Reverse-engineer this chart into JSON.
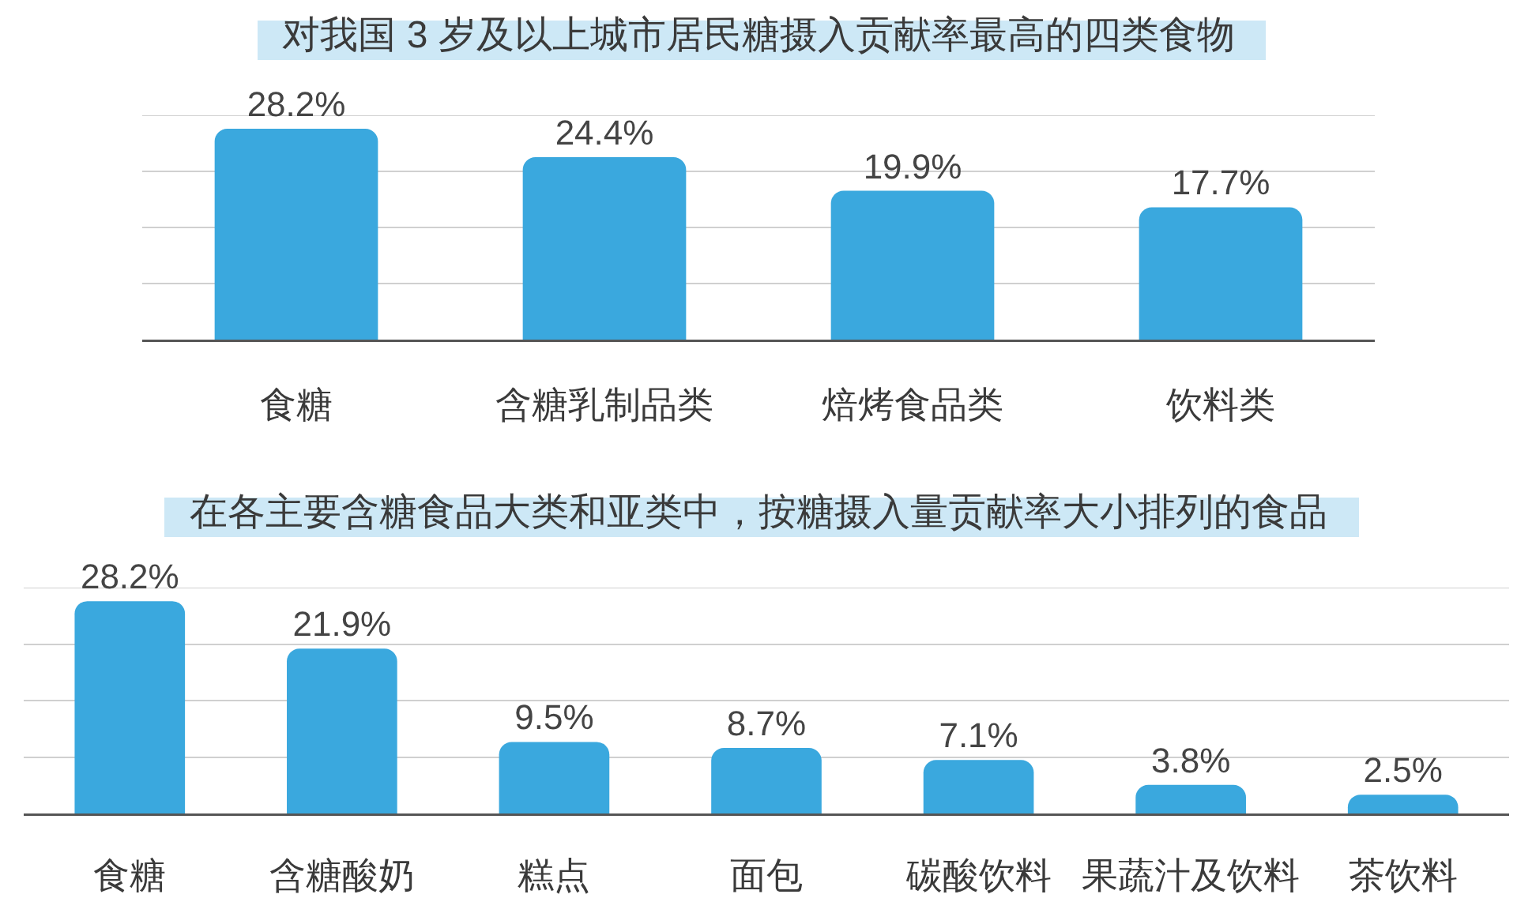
{
  "chart_data": [
    {
      "type": "bar",
      "title": "对我国 3 岁及以上城市居民糖摄入贡献率最高的四类食物",
      "categories": [
        "食糖",
        "含糖乳制品类",
        "焙烤食品类",
        "饮料类"
      ],
      "values": [
        28.2,
        24.4,
        19.9,
        17.7
      ],
      "value_labels": [
        "28.2%",
        "24.4%",
        "19.9%",
        "17.7%"
      ],
      "color": "#3aa8de",
      "ylim": [
        0,
        30
      ],
      "yticks": [
        {
          "value": 7.5,
          "label": null
        },
        {
          "value": 15,
          "label": null
        },
        {
          "value": 22.5,
          "label": null
        },
        {
          "value": 30,
          "label": null
        }
      ],
      "grid": "y",
      "tick_labels": "x"
    },
    {
      "type": "bar",
      "title": "在各主要含糖食品大类和亚类中，按糖摄入量贡献率大小排列的食品",
      "categories": [
        "食糖",
        "含糖酸奶",
        "糕点",
        "面包",
        "碳酸饮料",
        "果蔬汁及饮料",
        "茶饮料"
      ],
      "values": [
        28.2,
        21.9,
        9.5,
        8.7,
        7.1,
        3.8,
        2.5
      ],
      "value_labels": [
        "28.2%",
        "21.9%",
        "9.5%",
        "8.7%",
        "7.1%",
        "3.8%",
        "2.5%"
      ],
      "color": "#3aa8de",
      "ylim": [
        0,
        30
      ],
      "yticks": [
        {
          "value": 7.5,
          "label": null
        },
        {
          "value": 15,
          "label": null
        },
        {
          "value": 22.5,
          "label": null
        },
        {
          "value": 30,
          "label": null
        }
      ],
      "grid": "y",
      "tick_labels": "x"
    }
  ]
}
